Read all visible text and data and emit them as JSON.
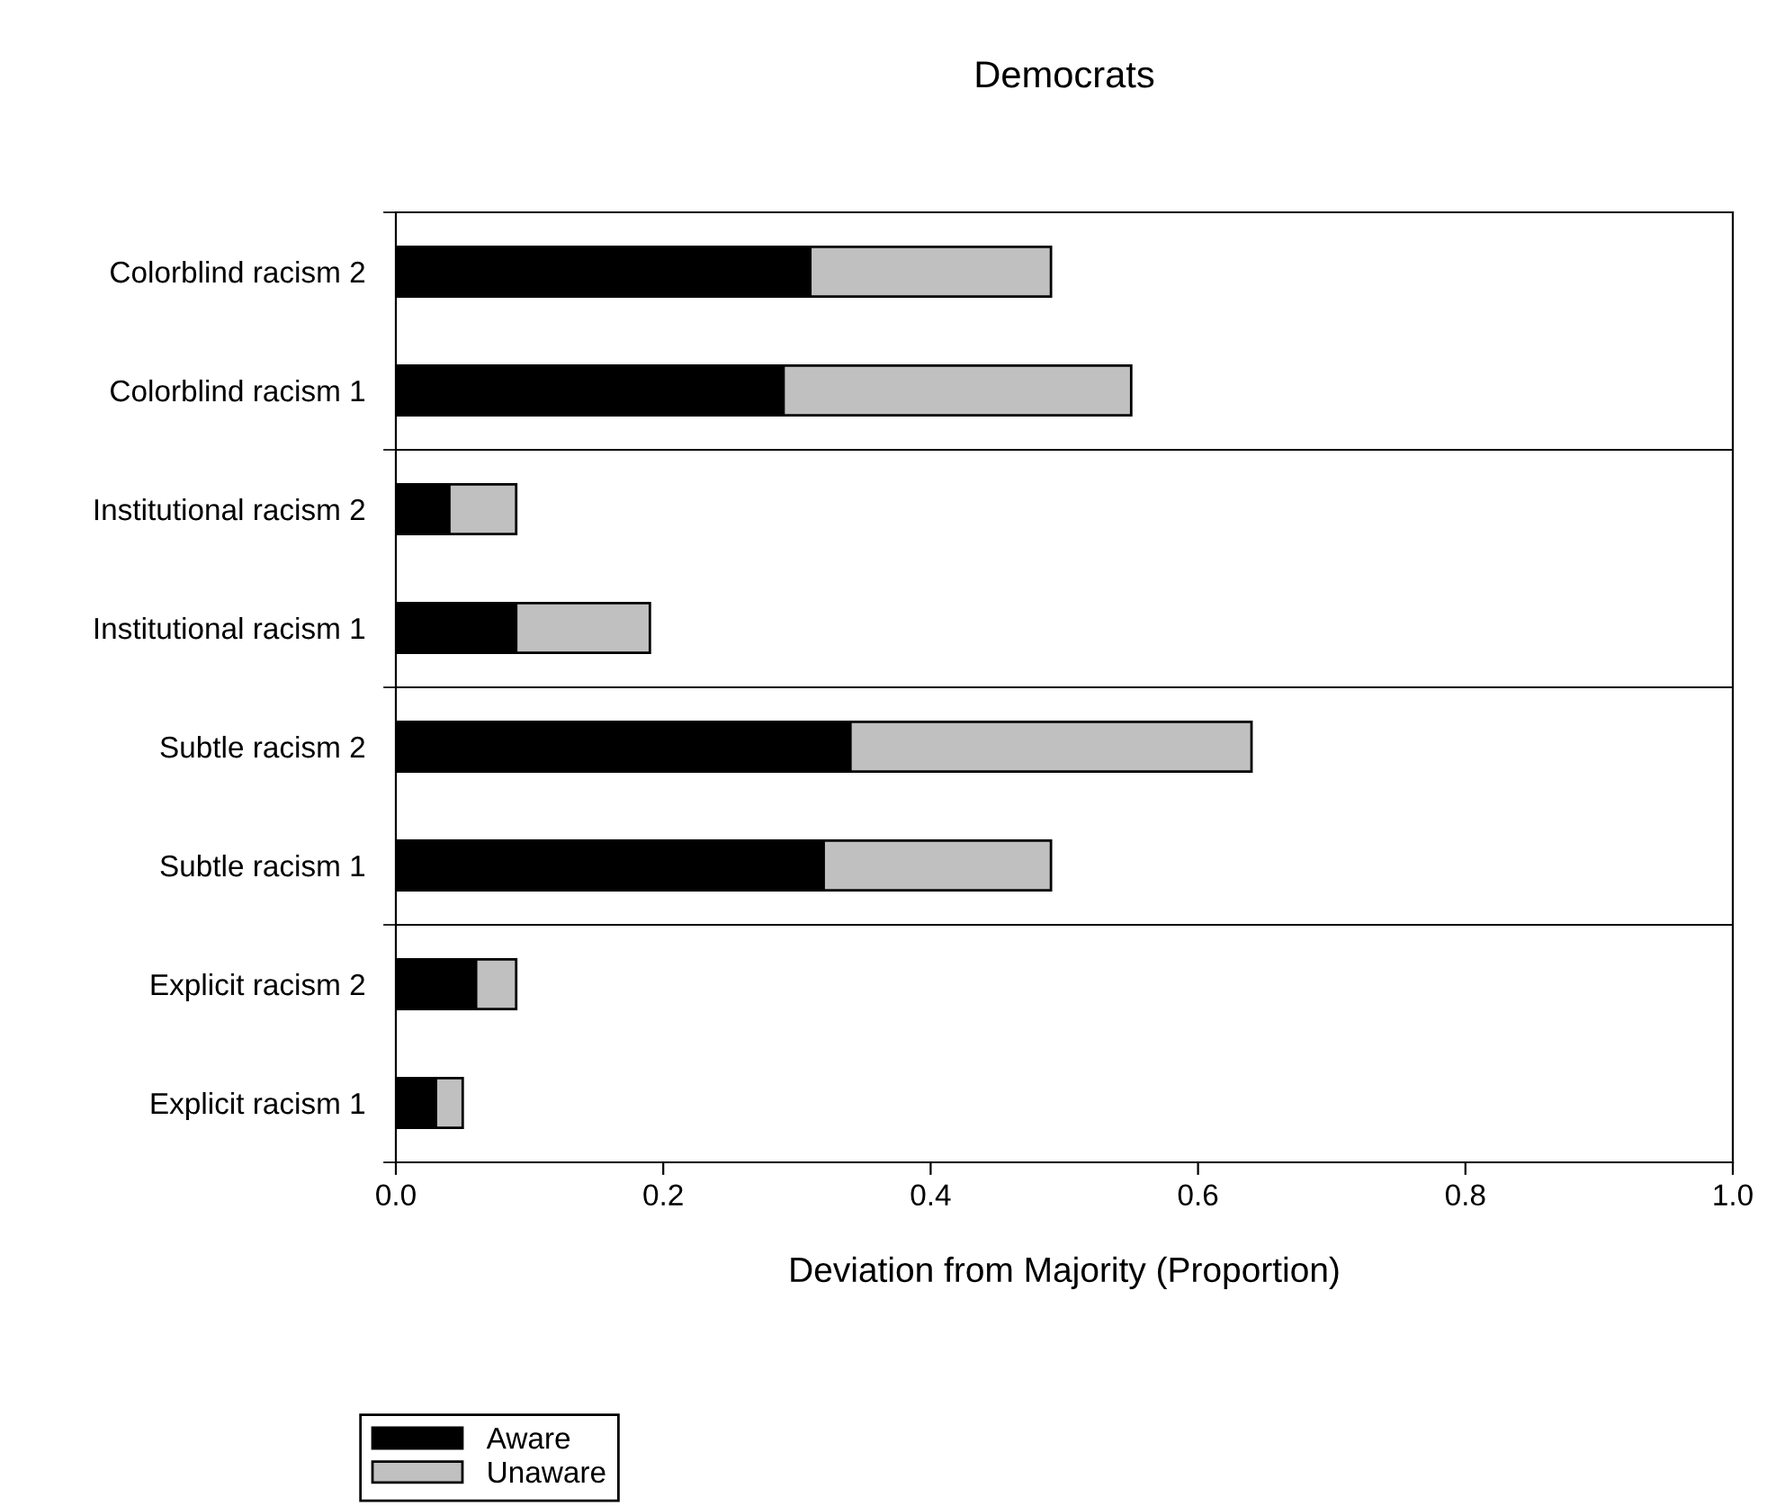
{
  "chart_data": {
    "type": "bar",
    "orientation": "horizontal",
    "stacked": true,
    "title": "Democrats",
    "xlabel": "Deviation from Majority (Proportion)",
    "categories": [
      "Colorblind racism 2",
      "Colorblind racism 1",
      "Institutional racism 2",
      "Institutional racism 1",
      "Subtle racism 2",
      "Subtle racism 1",
      "Explicit racism 2",
      "Explicit racism 1"
    ],
    "series": [
      {
        "name": "Aware",
        "color": "#000000",
        "values": [
          0.31,
          0.29,
          0.04,
          0.09,
          0.34,
          0.32,
          0.06,
          0.03
        ]
      },
      {
        "name": "Unaware",
        "color": "#c0c0c0",
        "values": [
          0.18,
          0.26,
          0.05,
          0.1,
          0.3,
          0.17,
          0.03,
          0.02
        ]
      }
    ],
    "xlim": [
      0,
      1
    ],
    "xticks": [
      {
        "value": 0,
        "label": "0.0"
      },
      {
        "value": 0.2,
        "label": "0.2"
      },
      {
        "value": 0.4,
        "label": "0.4"
      },
      {
        "value": 0.6,
        "label": "0.6"
      },
      {
        "value": 0.8,
        "label": "0.8"
      },
      {
        "value": 1,
        "label": "1.0"
      }
    ],
    "grid": false,
    "legend": "bottom left"
  }
}
